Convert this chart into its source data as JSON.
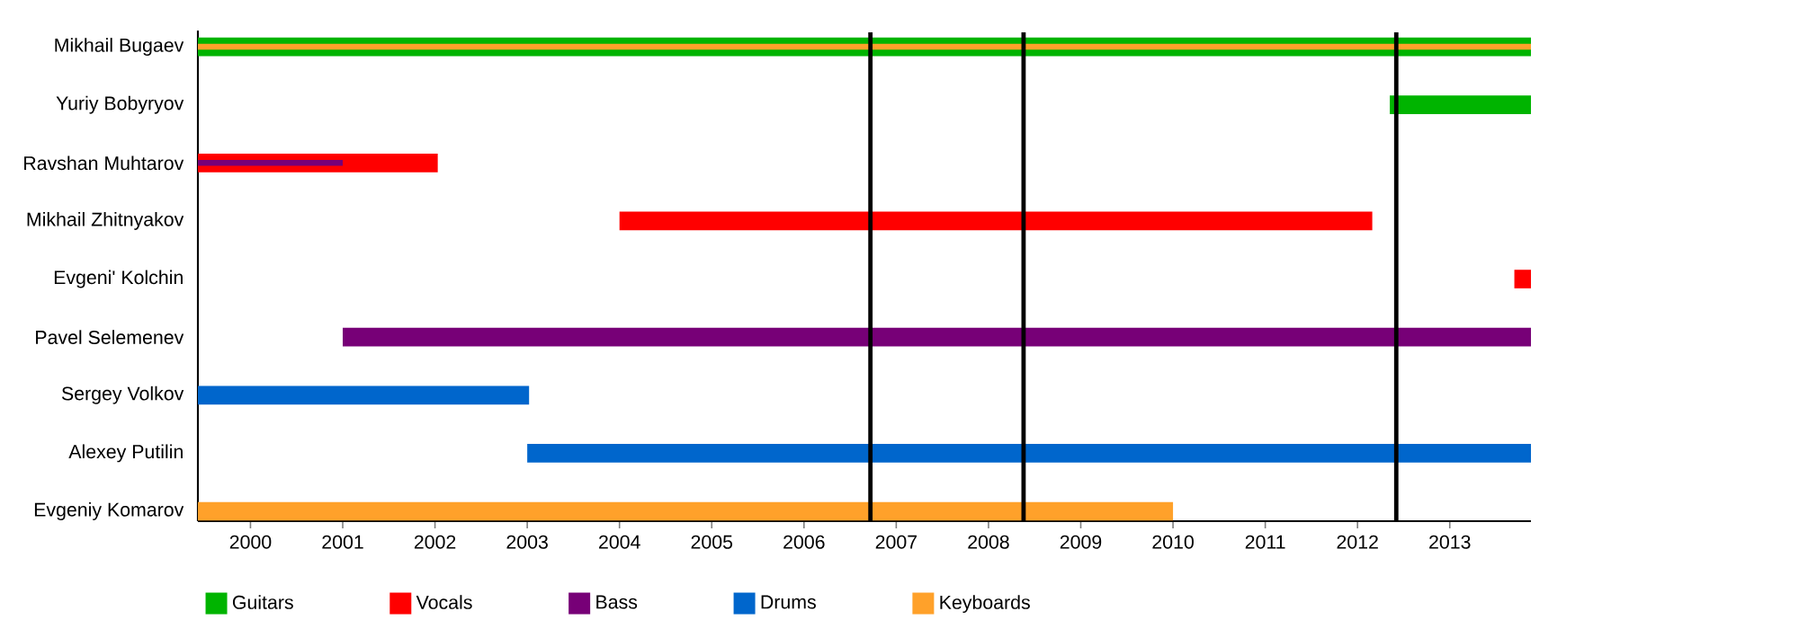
{
  "chart_data": {
    "type": "bar",
    "orientation": "horizontal",
    "categories": [
      "Mikhail Bugaev",
      "Yuriy Bobyryov",
      "Ravshan Muhtarov",
      "Mikhail Zhitnyakov",
      "Evgeni' Kolchin",
      "Pavel Selemenev",
      "Sergey Volkov",
      "Alexey Putilin",
      "Evgeniy Komarov"
    ],
    "series": [
      {
        "name": "Guitars",
        "color": "#00b400",
        "base": [
          1999.43,
          2012.35,
          null,
          null,
          null,
          null,
          null,
          null,
          null
        ],
        "values": [
          14.45,
          1.53,
          null,
          null,
          null,
          null,
          null,
          null,
          null
        ]
      },
      {
        "name": "Vocals",
        "color": "#ff0000",
        "base": [
          null,
          null,
          1999.43,
          2004.0,
          2013.7,
          null,
          null,
          null,
          null
        ],
        "values": [
          null,
          null,
          2.6,
          8.16,
          0.18,
          null,
          null,
          null,
          null
        ]
      },
      {
        "name": "Bass",
        "color": "#770077",
        "base": [
          null,
          null,
          1999.43,
          null,
          null,
          2001.0,
          null,
          null,
          null
        ],
        "values": [
          null,
          null,
          1.57,
          null,
          null,
          12.88,
          null,
          null,
          null
        ]
      },
      {
        "name": "Drums",
        "color": "#0066cc",
        "base": [
          null,
          null,
          null,
          null,
          null,
          null,
          1999.43,
          2003.0,
          null
        ],
        "values": [
          null,
          null,
          null,
          null,
          null,
          null,
          3.59,
          10.88,
          null
        ]
      },
      {
        "name": "Keyboards",
        "color": "#ffa12a",
        "base": [
          1999.43,
          null,
          null,
          null,
          null,
          null,
          null,
          null,
          1999.43
        ],
        "values": [
          14.45,
          null,
          null,
          null,
          null,
          null,
          null,
          null,
          10.57
        ]
      }
    ],
    "xlim": [
      1999.43,
      2013.88
    ],
    "xticks": [
      2000,
      2001,
      2002,
      2003,
      2004,
      2005,
      2006,
      2007,
      2008,
      2009,
      2010,
      2011,
      2012,
      2013
    ],
    "ref_lines": [
      {
        "axis": "x",
        "value": 2006.72,
        "color": "#000000"
      },
      {
        "axis": "x",
        "value": 2008.38,
        "color": "#000000"
      },
      {
        "axis": "x",
        "value": 2012.42,
        "color": "#000000"
      }
    ],
    "legend": "bottom"
  }
}
